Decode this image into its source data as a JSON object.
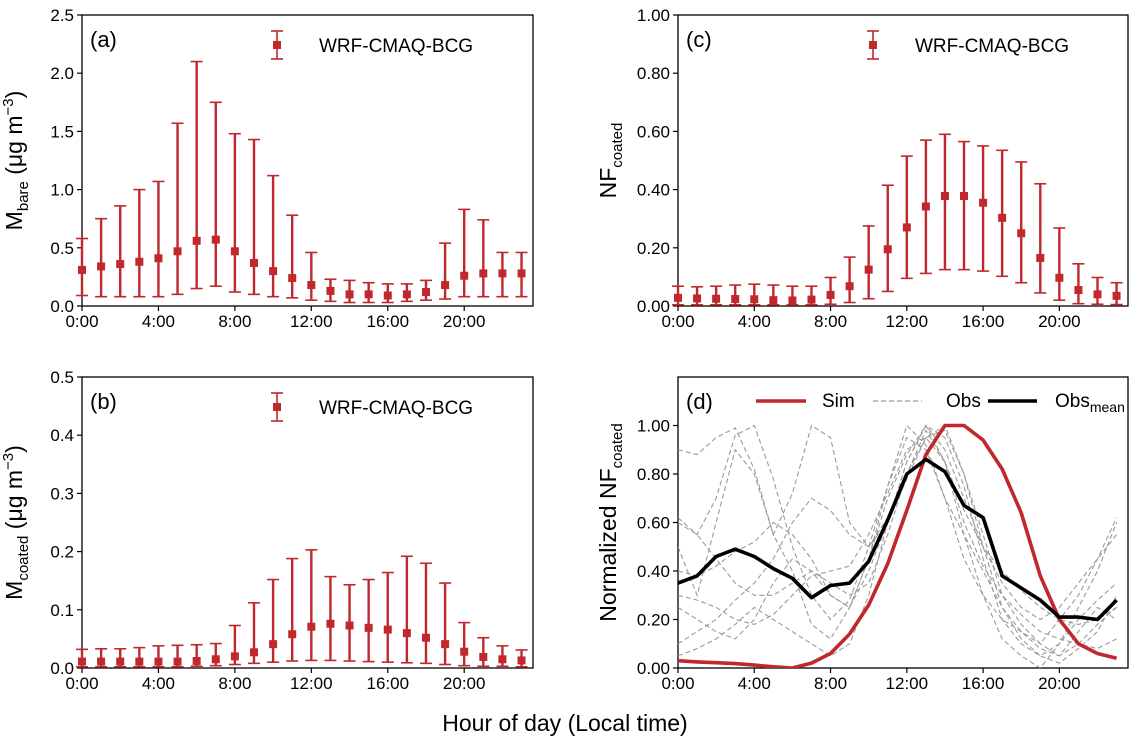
{
  "figure": {
    "xlabel": "Hour of day (Local time)",
    "colors": {
      "sim": "#c0282d",
      "obs": "#9a9a9a",
      "obs_mean": "#000000"
    }
  },
  "chart_data": [
    {
      "panel": "a",
      "panel_label": "(a)",
      "type": "errorbar",
      "ylabel_main": "M",
      "ylabel_sub": "bare",
      "ylabel_unit": " (μg m",
      "ylabel_sup": "−3",
      "ylabel_close": ")",
      "legend": "WRF-CMAQ-BCG",
      "legend_position": "top-right",
      "xlim": [
        0,
        23.6
      ],
      "xticks": [
        "0:00",
        "4:00",
        "8:00",
        "12:00",
        "16:00",
        "20:00"
      ],
      "ylim": [
        0,
        2.5
      ],
      "yticks": [
        "0.0",
        "0.5",
        "1.0",
        "1.5",
        "2.0",
        "2.5"
      ],
      "x": [
        0,
        1,
        2,
        3,
        4,
        5,
        6,
        7,
        8,
        9,
        10,
        11,
        12,
        13,
        14,
        15,
        16,
        17,
        18,
        19,
        20,
        21,
        22,
        23
      ],
      "mean": [
        0.31,
        0.34,
        0.36,
        0.38,
        0.41,
        0.47,
        0.56,
        0.57,
        0.47,
        0.37,
        0.3,
        0.24,
        0.18,
        0.13,
        0.1,
        0.1,
        0.09,
        0.1,
        0.12,
        0.18,
        0.26,
        0.28,
        0.28,
        0.28
      ],
      "upper": [
        0.58,
        0.75,
        0.86,
        1.0,
        1.07,
        1.57,
        2.1,
        1.75,
        1.48,
        1.43,
        1.12,
        0.78,
        0.46,
        0.23,
        0.22,
        0.2,
        0.19,
        0.19,
        0.22,
        0.54,
        0.83,
        0.74,
        0.46,
        0.46
      ],
      "lower": [
        0.09,
        0.08,
        0.08,
        0.08,
        0.08,
        0.1,
        0.15,
        0.17,
        0.12,
        0.1,
        0.08,
        0.07,
        0.05,
        0.04,
        0.03,
        0.03,
        0.03,
        0.04,
        0.05,
        0.06,
        0.08,
        0.08,
        0.08,
        0.08
      ]
    },
    {
      "panel": "b",
      "panel_label": "(b)",
      "type": "errorbar",
      "ylabel_main": "M",
      "ylabel_sub": "coated",
      "ylabel_unit": " (μg m",
      "ylabel_sup": "−3",
      "ylabel_close": ")",
      "legend": "WRF-CMAQ-BCG",
      "legend_position": "top-right",
      "xlim": [
        0,
        23.6
      ],
      "xticks": [
        "0:00",
        "4:00",
        "8:00",
        "12:00",
        "16:00",
        "20:00"
      ],
      "ylim": [
        0,
        0.5
      ],
      "yticks": [
        "0.0",
        "0.1",
        "0.2",
        "0.3",
        "0.4",
        "0.5"
      ],
      "x": [
        0,
        1,
        2,
        3,
        4,
        5,
        6,
        7,
        8,
        9,
        10,
        11,
        12,
        13,
        14,
        15,
        16,
        17,
        18,
        19,
        20,
        21,
        22,
        23
      ],
      "mean": [
        0.011,
        0.011,
        0.011,
        0.011,
        0.011,
        0.011,
        0.012,
        0.015,
        0.02,
        0.027,
        0.041,
        0.058,
        0.071,
        0.076,
        0.073,
        0.069,
        0.066,
        0.06,
        0.052,
        0.041,
        0.028,
        0.019,
        0.015,
        0.013
      ],
      "upper": [
        0.032,
        0.033,
        0.033,
        0.035,
        0.038,
        0.039,
        0.04,
        0.042,
        0.073,
        0.112,
        0.152,
        0.188,
        0.203,
        0.157,
        0.143,
        0.152,
        0.164,
        0.192,
        0.18,
        0.146,
        0.078,
        0.052,
        0.038,
        0.031
      ],
      "lower": [
        0.002,
        0.002,
        0.002,
        0.002,
        0.002,
        0.002,
        0.003,
        0.004,
        0.006,
        0.008,
        0.01,
        0.012,
        0.013,
        0.013,
        0.012,
        0.011,
        0.01,
        0.009,
        0.008,
        0.006,
        0.004,
        0.003,
        0.003,
        0.002
      ]
    },
    {
      "panel": "c",
      "panel_label": "(c)",
      "type": "errorbar",
      "ylabel_main": "NF",
      "ylabel_sub": "coated",
      "legend": "WRF-CMAQ-BCG",
      "legend_position": "top-right",
      "xlim": [
        0,
        23.6
      ],
      "xticks": [
        "0:00",
        "4:00",
        "8:00",
        "12:00",
        "16:00",
        "20:00"
      ],
      "ylim": [
        0,
        1.0
      ],
      "yticks": [
        "0.00",
        "0.20",
        "0.40",
        "0.60",
        "0.80",
        "1.00"
      ],
      "x": [
        0,
        1,
        2,
        3,
        4,
        5,
        6,
        7,
        8,
        9,
        10,
        11,
        12,
        13,
        14,
        15,
        16,
        17,
        18,
        19,
        20,
        21,
        22,
        23
      ],
      "mean": [
        0.028,
        0.026,
        0.025,
        0.024,
        0.023,
        0.02,
        0.019,
        0.022,
        0.038,
        0.068,
        0.125,
        0.195,
        0.27,
        0.342,
        0.378,
        0.378,
        0.355,
        0.303,
        0.25,
        0.165,
        0.097,
        0.055,
        0.04,
        0.035
      ],
      "upper": [
        0.068,
        0.066,
        0.068,
        0.072,
        0.075,
        0.072,
        0.068,
        0.068,
        0.098,
        0.168,
        0.275,
        0.415,
        0.515,
        0.57,
        0.59,
        0.565,
        0.55,
        0.535,
        0.495,
        0.42,
        0.268,
        0.145,
        0.098,
        0.08
      ],
      "lower": [
        0.004,
        0.004,
        0.004,
        0.004,
        0.004,
        0.004,
        0.004,
        0.004,
        0.006,
        0.012,
        0.025,
        0.05,
        0.095,
        0.112,
        0.125,
        0.125,
        0.12,
        0.102,
        0.08,
        0.045,
        0.02,
        0.008,
        0.006,
        0.005
      ]
    },
    {
      "panel": "d",
      "panel_label": "(d)",
      "type": "line",
      "ylabel_main": "Normalized NF",
      "ylabel_sub": "coated",
      "xlim": [
        0,
        23.6
      ],
      "xticks": [
        "0:00",
        "4:00",
        "8:00",
        "12:00",
        "16:00",
        "20:00"
      ],
      "ylim": [
        0,
        1.2
      ],
      "yticks": [
        "0.00",
        "0.20",
        "0.40",
        "0.60",
        "0.80",
        "1.00"
      ],
      "legend": {
        "sim": "Sim",
        "obs": "Obs",
        "obs_mean_main": "Obs",
        "obs_mean_sub": "mean"
      },
      "legend_position": "top",
      "x": [
        0,
        1,
        2,
        3,
        4,
        5,
        6,
        7,
        8,
        9,
        10,
        11,
        12,
        13,
        14,
        15,
        16,
        17,
        18,
        19,
        20,
        21,
        22,
        23
      ],
      "sim": [
        0.03,
        0.025,
        0.022,
        0.018,
        0.012,
        0.005,
        0.0,
        0.02,
        0.06,
        0.14,
        0.26,
        0.43,
        0.65,
        0.88,
        1.0,
        1.0,
        0.94,
        0.82,
        0.64,
        0.38,
        0.2,
        0.1,
        0.06,
        0.04
      ],
      "obs_mean": [
        0.35,
        0.38,
        0.46,
        0.49,
        0.46,
        0.41,
        0.37,
        0.29,
        0.34,
        0.35,
        0.44,
        0.61,
        0.8,
        0.86,
        0.81,
        0.67,
        0.62,
        0.38,
        0.33,
        0.28,
        0.21,
        0.21,
        0.2,
        0.28
      ],
      "obs": [
        [
          0.9,
          0.88,
          0.95,
          0.99,
          0.82,
          0.55,
          0.4,
          0.18,
          0.12,
          0.25,
          0.45,
          0.7,
          0.88,
          1.0,
          0.85,
          0.55,
          0.3,
          0.12,
          0.05,
          0.0,
          0.1,
          0.25,
          0.4,
          0.6
        ],
        [
          0.62,
          0.55,
          0.7,
          0.96,
          1.0,
          0.78,
          0.5,
          0.3,
          0.2,
          0.28,
          0.5,
          0.75,
          0.95,
          0.9,
          0.7,
          0.45,
          0.3,
          0.2,
          0.15,
          0.1,
          0.05,
          0.1,
          0.18,
          0.25
        ],
        [
          0.5,
          0.3,
          0.6,
          0.9,
          0.8,
          0.55,
          0.72,
          1.0,
          0.95,
          0.6,
          0.5,
          0.62,
          0.8,
          0.95,
          1.0,
          0.8,
          0.55,
          0.3,
          0.18,
          0.1,
          0.2,
          0.3,
          0.45,
          0.62
        ],
        [
          0.4,
          0.38,
          0.42,
          0.48,
          0.52,
          0.6,
          0.55,
          0.45,
          0.3,
          0.25,
          0.4,
          0.6,
          0.85,
          1.0,
          0.95,
          0.75,
          0.45,
          0.2,
          0.1,
          0.05,
          0.02,
          0.08,
          0.15,
          0.3
        ],
        [
          0.1,
          0.15,
          0.2,
          0.28,
          0.35,
          0.45,
          0.6,
          0.7,
          0.65,
          0.55,
          0.5,
          0.6,
          0.78,
          0.95,
          0.98,
          0.8,
          0.5,
          0.25,
          0.12,
          0.05,
          0.1,
          0.2,
          0.28,
          0.35
        ],
        [
          0.6,
          0.55,
          0.45,
          0.35,
          0.3,
          0.3,
          0.35,
          0.4,
          0.35,
          0.3,
          0.35,
          0.55,
          0.8,
          0.98,
          0.85,
          0.65,
          0.5,
          0.4,
          0.32,
          0.25,
          0.2,
          0.18,
          0.2,
          0.25
        ],
        [
          0.25,
          0.2,
          0.15,
          0.12,
          0.2,
          0.35,
          0.45,
          0.4,
          0.3,
          0.25,
          0.45,
          0.75,
          1.0,
          0.92,
          0.7,
          0.55,
          0.4,
          0.25,
          0.15,
          0.08,
          0.05,
          0.15,
          0.25,
          0.2
        ],
        [
          0.05,
          0.08,
          0.12,
          0.18,
          0.25,
          0.2,
          0.15,
          0.1,
          0.05,
          0.1,
          0.3,
          0.6,
          0.85,
          1.0,
          0.9,
          0.7,
          0.5,
          0.35,
          0.25,
          0.2,
          0.25,
          0.35,
          0.45,
          0.55
        ],
        [
          0.3,
          0.28,
          0.25,
          0.2,
          0.18,
          0.22,
          0.3,
          0.38,
          0.4,
          0.42,
          0.55,
          0.72,
          0.9,
          0.95,
          0.85,
          0.6,
          0.42,
          0.3,
          0.22,
          0.15,
          0.12,
          0.1,
          0.08,
          0.12
        ]
      ]
    }
  ]
}
